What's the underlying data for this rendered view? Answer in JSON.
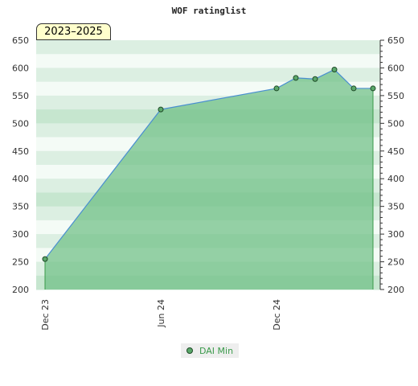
{
  "chart_data": {
    "type": "area",
    "title": "WOF ratinglist",
    "range_label": "2023–2025",
    "xlabel": "",
    "ylabel": "",
    "ylim": [
      200,
      650
    ],
    "y_ticks": [
      200,
      250,
      300,
      350,
      400,
      450,
      500,
      550,
      600,
      650
    ],
    "x_ticks": [
      "Dec 23",
      "Jun 24",
      "Dec 24"
    ],
    "legend_position": "bottom-center",
    "grid": true,
    "series": [
      {
        "name": "DAI Min",
        "x": [
          "Dec 23",
          "Jun 24",
          "Dec 24",
          "Jan 25",
          "Feb 25",
          "Mar 25",
          "Apr 25",
          "May 25"
        ],
        "values": [
          255,
          525,
          563,
          582,
          580,
          597,
          563,
          563
        ]
      }
    ],
    "colors": {
      "line": "#4a8fd0",
      "fill": "#6fbf85",
      "marker_fill": "#5aa86a",
      "marker_stroke": "#1f4a28",
      "legend_text": "#3a9a4a",
      "badge_bg": "#ffffcc"
    }
  }
}
